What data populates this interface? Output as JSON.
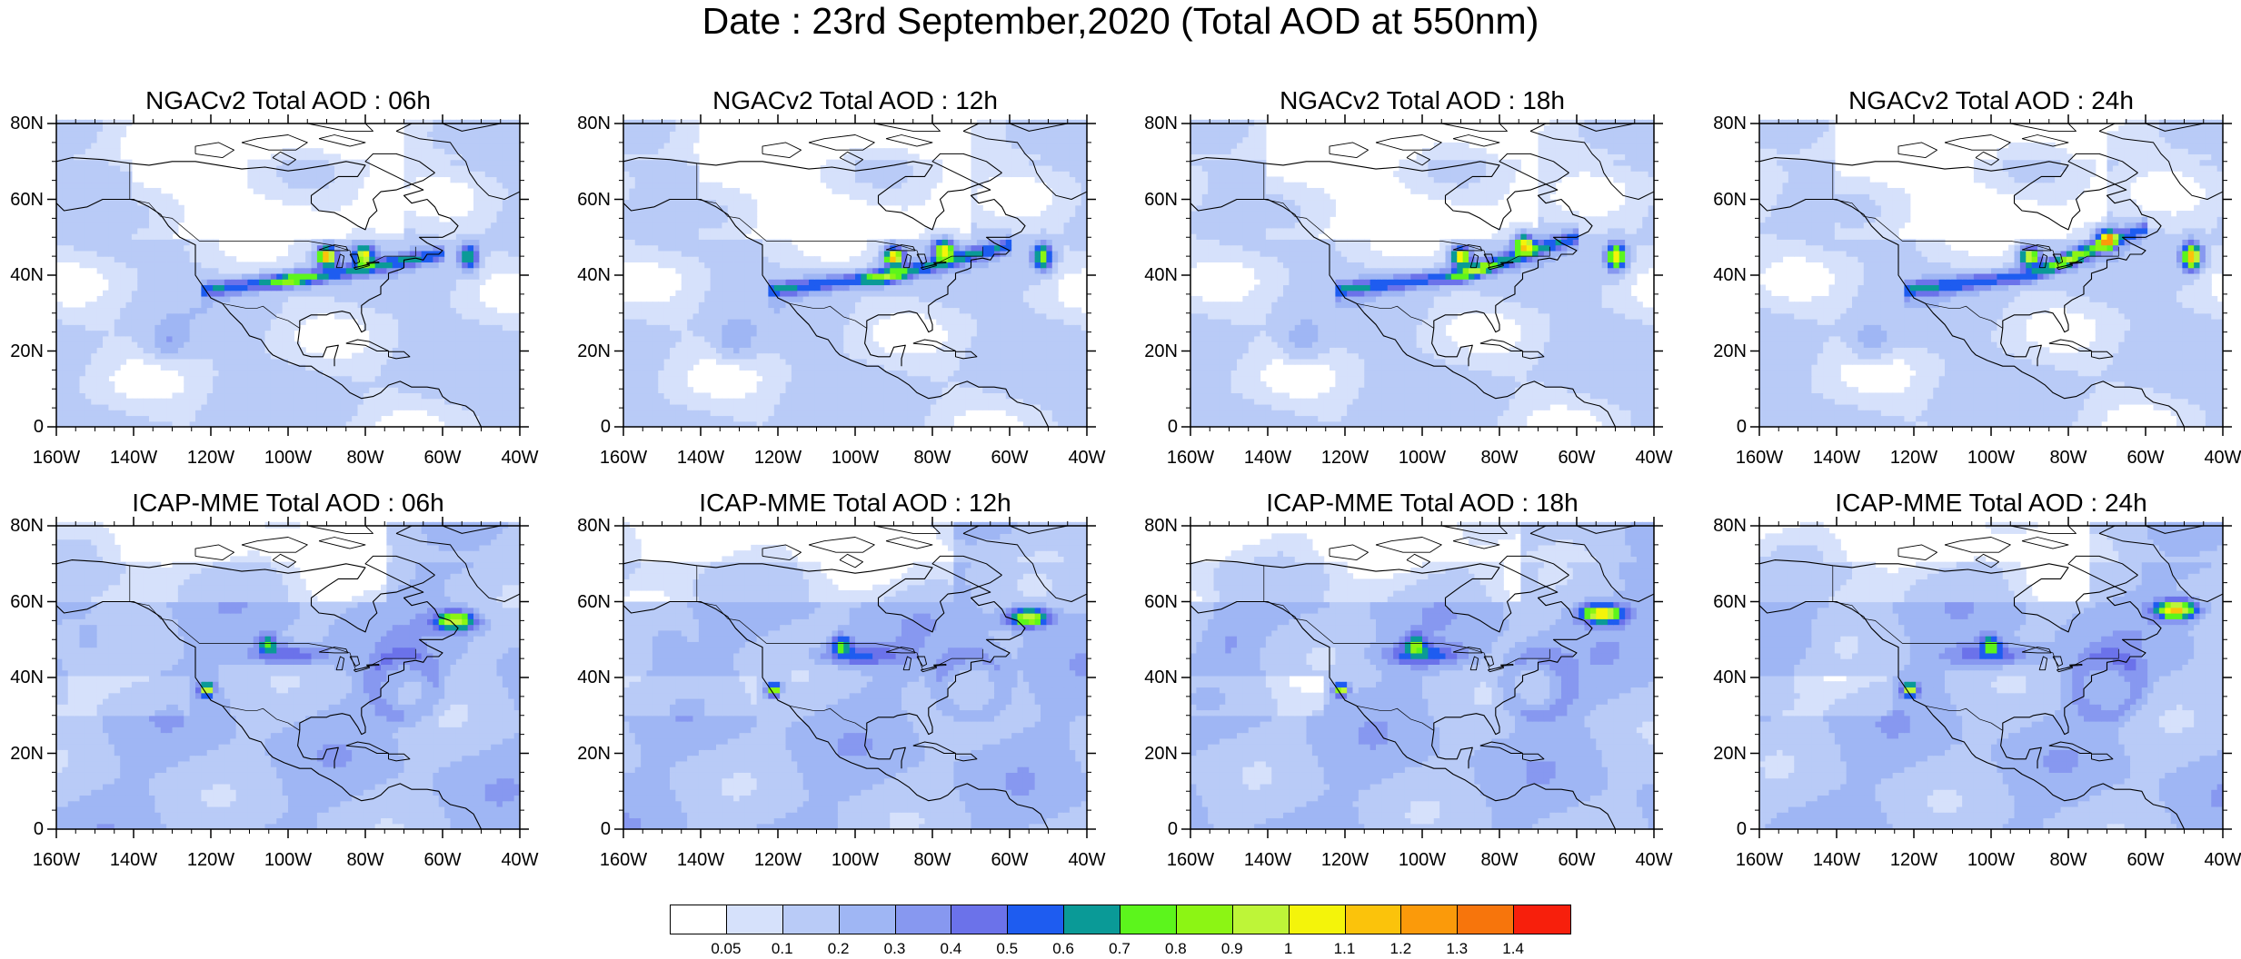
{
  "figure_title": "Date : 23rd September,2020 (Total AOD at 550nm)",
  "panels": [
    {
      "title": "NGACv2 Total AOD : 06h",
      "model": "ngac",
      "hour": 6
    },
    {
      "title": "NGACv2 Total AOD : 12h",
      "model": "ngac",
      "hour": 12
    },
    {
      "title": "NGACv2 Total AOD : 18h",
      "model": "ngac",
      "hour": 18
    },
    {
      "title": "NGACv2 Total AOD : 24h",
      "model": "ngac",
      "hour": 24
    },
    {
      "title": "ICAP-MME Total AOD : 06h",
      "model": "icap",
      "hour": 6
    },
    {
      "title": "ICAP-MME Total AOD : 12h",
      "model": "icap",
      "hour": 12
    },
    {
      "title": "ICAP-MME Total AOD : 18h",
      "model": "icap",
      "hour": 18
    },
    {
      "title": "ICAP-MME Total AOD : 24h",
      "model": "icap",
      "hour": 24
    }
  ],
  "lat_ticks": [
    "80N",
    "60N",
    "40N",
    "20N",
    "0"
  ],
  "lon_ticks": [
    "160W",
    "140W",
    "120W",
    "100W",
    "80W",
    "60W",
    "40W"
  ],
  "map_extent": {
    "lon_min": -160,
    "lon_max": -40,
    "lat_min": 0,
    "lat_max": 80
  },
  "colorbar": {
    "labels": [
      "0.05",
      "0.1",
      "0.2",
      "0.3",
      "0.4",
      "0.5",
      "0.6",
      "0.7",
      "0.8",
      "0.9",
      "1",
      "1.1",
      "1.2",
      "1.3",
      "1.4"
    ],
    "colors": [
      "#ffffff",
      "#d6e1fb",
      "#b9cbf7",
      "#9fb6f4",
      "#8798f0",
      "#6b72ea",
      "#1e5cf0",
      "#0a9a97",
      "#5cf51c",
      "#8cf514",
      "#bef538",
      "#f4f40a",
      "#fbc30b",
      "#fb9a0a",
      "#f7750c",
      "#f71f0c"
    ]
  }
}
